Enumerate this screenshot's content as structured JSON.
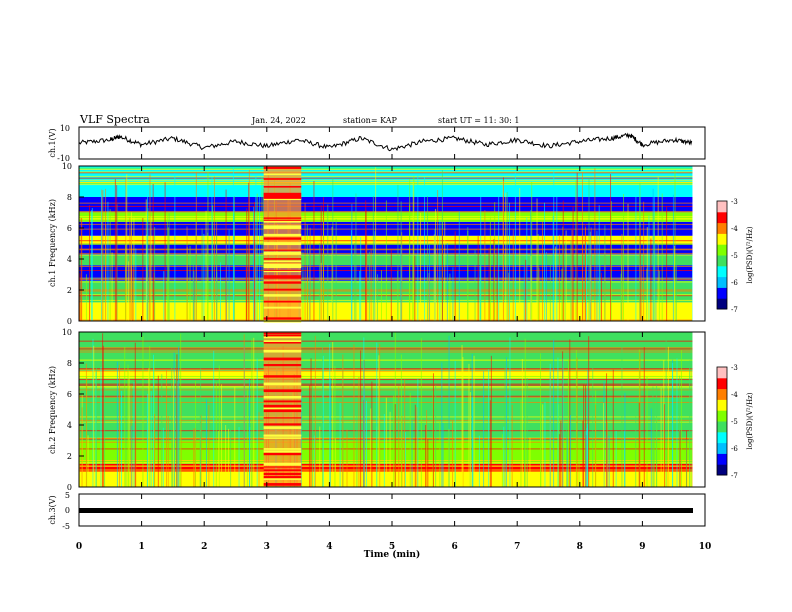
{
  "header": {
    "title": "VLF Spectra",
    "date": "Jan. 24, 2022",
    "station": "station= KAP",
    "start": "start  UT =   11: 30: 1"
  },
  "colorbar": {
    "label": "log(PSD)(V²/Hz)",
    "ticks": [
      "-3",
      "-4",
      "-5",
      "-6",
      "-7"
    ],
    "colors": [
      "#00007f",
      "#0000ff",
      "#00bfff",
      "#00ffff",
      "#3fe05f",
      "#7fff00",
      "#ffff00",
      "#ff7f00",
      "#ff0000",
      "#ffc0c0"
    ]
  },
  "chart_data": [
    {
      "type": "line",
      "panel": "ch1-waveform",
      "ylabel": "ch.1(V)",
      "yticks": [
        "10",
        "-10"
      ],
      "ylim": [
        -10,
        10
      ],
      "xlim": [
        0,
        10
      ],
      "note_values": "signal oscillates roughly between -6 and +6 V across 0–9.8 min",
      "x": [
        0,
        0.5,
        0.65,
        1.0,
        1.5,
        2.0,
        2.5,
        3.0,
        3.5,
        4.0,
        4.5,
        5.0,
        5.5,
        6.0,
        6.5,
        7.0,
        7.5,
        8.0,
        8.5,
        8.8,
        9.0,
        9.5,
        9.8
      ],
      "y": [
        0,
        2,
        4,
        -1,
        3,
        -3,
        1,
        -2,
        2,
        -3,
        3,
        -4,
        1,
        3,
        -1,
        2,
        -2,
        1,
        3,
        5,
        -1,
        2,
        0
      ]
    },
    {
      "type": "heatmap",
      "panel": "ch1-spectrogram",
      "ylabel": "ch.1 Frequency (kHz)",
      "yticks": [
        "10",
        "8",
        "6",
        "4",
        "2",
        "0"
      ],
      "ylim": [
        0,
        10
      ],
      "xlim": [
        0,
        10
      ],
      "zlabel": "log(PSD)(V²/Hz)",
      "zlim": [
        -7,
        -3
      ],
      "bands_khz": [
        {
          "from": 0,
          "to": 1.2,
          "level": -4.5
        },
        {
          "from": 1.2,
          "to": 2.6,
          "level": -5.2
        },
        {
          "from": 2.6,
          "to": 3.6,
          "level": -6.5
        },
        {
          "from": 3.6,
          "to": 4.3,
          "level": -5.3
        },
        {
          "from": 4.3,
          "to": 5.0,
          "level": -6.6
        },
        {
          "from": 5.0,
          "to": 5.5,
          "level": -4.6
        },
        {
          "from": 5.5,
          "to": 6.4,
          "level": -6.3
        },
        {
          "from": 6.4,
          "to": 7.0,
          "level": -5.0
        },
        {
          "from": 7.0,
          "to": 8.0,
          "level": -6.2
        },
        {
          "from": 8.0,
          "to": 9.0,
          "level": -5.8
        },
        {
          "from": 9.0,
          "to": 10,
          "level": -5.4
        }
      ],
      "burst_min": [
        2.95,
        3.55
      ]
    },
    {
      "type": "heatmap",
      "panel": "ch2-spectrogram",
      "ylabel": "ch.2 Frequency (kHz)",
      "yticks": [
        "10",
        "8",
        "6",
        "4",
        "2",
        "0"
      ],
      "ylim": [
        0,
        10
      ],
      "xlim": [
        0,
        10
      ],
      "zlabel": "log(PSD)(V²/Hz)",
      "zlim": [
        -7,
        -3
      ],
      "bands_khz": [
        {
          "from": 0,
          "to": 1.0,
          "level": -4.4
        },
        {
          "from": 1.0,
          "to": 1.5,
          "level": -3.8
        },
        {
          "from": 1.5,
          "to": 3.0,
          "level": -4.9
        },
        {
          "from": 3.0,
          "to": 5.0,
          "level": -5.3
        },
        {
          "from": 5.0,
          "to": 7.0,
          "level": -5.2
        },
        {
          "from": 7.0,
          "to": 7.5,
          "level": -4.3
        },
        {
          "from": 7.5,
          "to": 10,
          "level": -5.1
        }
      ],
      "burst_min": [
        2.95,
        3.55
      ]
    },
    {
      "type": "line",
      "panel": "ch3-waveform",
      "ylabel": "ch.3(V)",
      "yticks": [
        "5",
        "0",
        "-5"
      ],
      "ylim": [
        -5,
        5
      ],
      "xlim": [
        0,
        10
      ],
      "x": [
        0,
        9.8
      ],
      "y": [
        0,
        0
      ]
    }
  ],
  "x_axis": {
    "label": "Time (min)",
    "ticks": [
      "0",
      "1",
      "2",
      "3",
      "4",
      "5",
      "6",
      "7",
      "8",
      "9",
      "10"
    ]
  }
}
